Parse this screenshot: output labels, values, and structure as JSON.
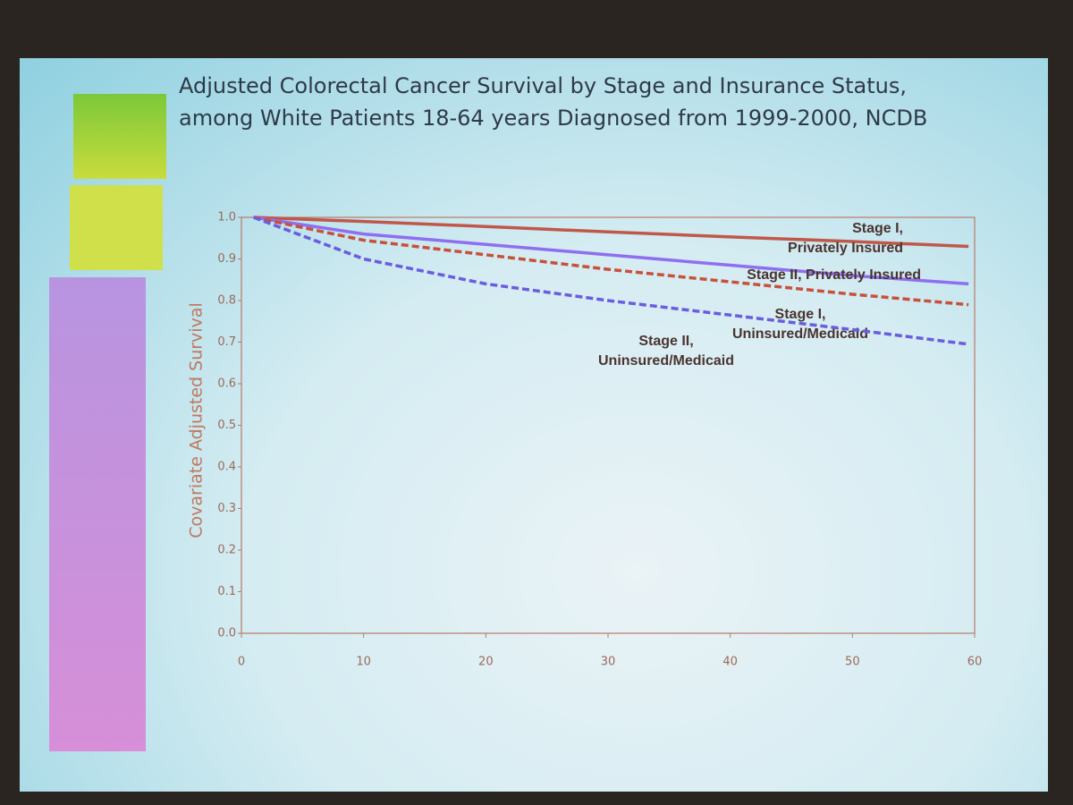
{
  "chart_data": {
    "type": "line",
    "title": "Adjusted Colorectal Cancer Survival by Stage and Insurance Status, among White Patients 18-64 years Diagnosed from 1999-2000, NCDB",
    "y_label": "Covariate Adjusted Survival",
    "x": [
      1,
      10,
      20,
      30,
      40,
      50,
      59.5
    ],
    "series": [
      {
        "name": "Stage I, Privately Insured",
        "color": "#c0584a",
        "style": "solid",
        "values": [
          1.0,
          0.99,
          0.978,
          0.965,
          0.953,
          0.942,
          0.93
        ]
      },
      {
        "name": "Stage II, Privately Insured",
        "color": "#8f6ff0",
        "style": "solid",
        "values": [
          1.0,
          0.96,
          0.935,
          0.91,
          0.885,
          0.86,
          0.84
        ]
      },
      {
        "name": "Stage I, Uninsured/Medicaid",
        "color": "#c8503c",
        "style": "dashed",
        "values": [
          1.0,
          0.945,
          0.91,
          0.875,
          0.845,
          0.815,
          0.79
        ]
      },
      {
        "name": "Stage II, Uninsured/Medicaid",
        "color": "#6a5de0",
        "style": "dashed",
        "values": [
          1.0,
          0.9,
          0.84,
          0.8,
          0.765,
          0.73,
          0.695
        ]
      }
    ],
    "xlim": [
      0,
      60
    ],
    "xticks": [
      0,
      10,
      20,
      30,
      40,
      50,
      60
    ],
    "ylim": [
      0,
      1
    ],
    "yticks": [
      {
        "value": 0,
        "label": "0.0"
      },
      0.1,
      0.2,
      0.3,
      0.4,
      0.5,
      0.6,
      0.7,
      0.8,
      0.9,
      {
        "value": 1,
        "label": "1.0"
      }
    ],
    "grid": false
  }
}
